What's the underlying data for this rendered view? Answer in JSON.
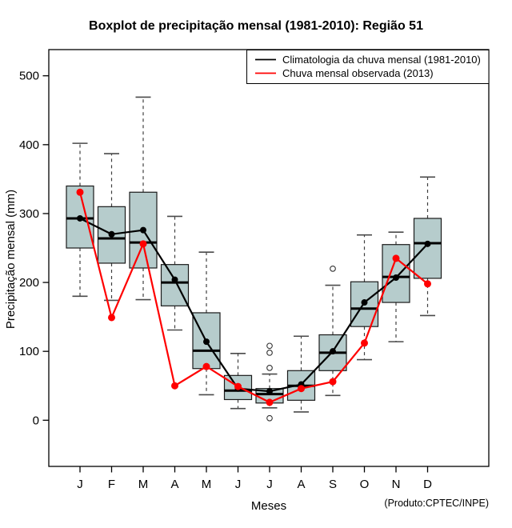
{
  "title": "Boxplot de precipitação mensal (1981-2010): Região 51",
  "credit": "(Produto:CPTEC/INPE)",
  "chart_data": {
    "type": "boxplot",
    "title": "Boxplot de precipitação mensal (1981-2010): Região 51",
    "xlabel": "Meses",
    "ylabel": "Precipitação mensal (mm)",
    "categories": [
      "J",
      "F",
      "M",
      "A",
      "M",
      "J",
      "J",
      "A",
      "S",
      "O",
      "N",
      "D"
    ],
    "yticks": [
      0,
      100,
      200,
      300,
      400,
      500
    ],
    "ylim": [
      -67,
      538
    ],
    "grid": false,
    "legend_position": "top-right",
    "box_fill": "#b6cccc",
    "box_stroke": "#1a1a1a",
    "whisker_color": "#3f3f3f",
    "boxes": [
      {
        "low": 180,
        "q1": 250,
        "median": 293,
        "q3": 340,
        "high": 402,
        "outliers": []
      },
      {
        "low": 174,
        "q1": 228,
        "median": 264,
        "q3": 310,
        "high": 387,
        "outliers": []
      },
      {
        "low": 175,
        "q1": 221,
        "median": 258,
        "q3": 331,
        "high": 469,
        "outliers": []
      },
      {
        "low": 131,
        "q1": 166,
        "median": 200,
        "q3": 226,
        "high": 296,
        "outliers": []
      },
      {
        "low": 37,
        "q1": 75,
        "median": 101,
        "q3": 156,
        "high": 244,
        "outliers": []
      },
      {
        "low": 17,
        "q1": 30,
        "median": 43,
        "q3": 65,
        "high": 97,
        "outliers": []
      },
      {
        "low": 18,
        "q1": 25,
        "median": 38,
        "q3": 46,
        "high": 67,
        "outliers": [
          108,
          98,
          76,
          3
        ]
      },
      {
        "low": 12,
        "q1": 29,
        "median": 50,
        "q3": 72,
        "high": 122,
        "outliers": []
      },
      {
        "low": 36,
        "q1": 72,
        "median": 98,
        "q3": 124,
        "high": 196,
        "outliers": [
          220
        ]
      },
      {
        "low": 88,
        "q1": 136,
        "median": 162,
        "q3": 201,
        "high": 269,
        "outliers": []
      },
      {
        "low": 114,
        "q1": 171,
        "median": 208,
        "q3": 255,
        "high": 273,
        "outliers": []
      },
      {
        "low": 152,
        "q1": 206,
        "median": 257,
        "q3": 293,
        "high": 353,
        "outliers": []
      }
    ],
    "series": [
      {
        "name": "Climatologia da chuva mensal (1981-2010)",
        "color": "#000000",
        "values": [
          293,
          270,
          276,
          204,
          114,
          46,
          42,
          52,
          100,
          171,
          207,
          256
        ]
      },
      {
        "name": "Chuva mensal observada (2013)",
        "color": "#ff0000",
        "values": [
          331,
          149,
          256,
          50,
          78,
          49,
          26,
          46,
          56,
          112,
          235,
          198
        ]
      }
    ]
  }
}
